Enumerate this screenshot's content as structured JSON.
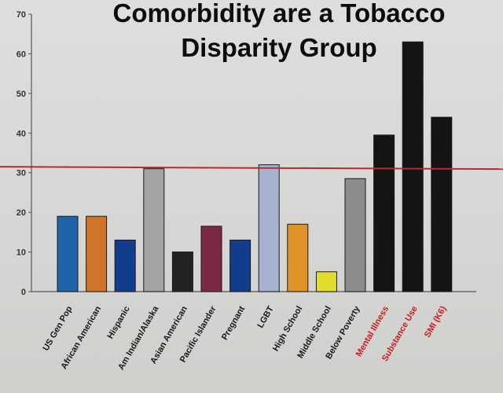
{
  "chart_data": {
    "type": "bar",
    "title": [
      "Comorbidity are a Tobacco",
      "Disparity Group"
    ],
    "xlabel": "",
    "ylabel": "",
    "ylim": [
      0,
      70
    ],
    "yticks": [
      0,
      10,
      20,
      30,
      40,
      50,
      60,
      70
    ],
    "grid": false,
    "legend": "none",
    "categories": [
      "US Gen Pop",
      "African American",
      "Hispanic",
      "Am Indian/Alaska",
      "Asian American",
      "Pacific Islander",
      "Pregnant",
      "LGBT",
      "High School",
      "Middle School",
      "Below Poverty",
      "Mental Illness",
      "Substance Use",
      "SMI (K6)"
    ],
    "values": [
      19,
      19,
      13,
      31,
      10,
      16.5,
      13,
      32,
      17,
      5,
      28.5,
      39.5,
      63,
      44
    ],
    "bar_colors": [
      "#1f64a8",
      "#d0742a",
      "#123c8c",
      "#a3a3a3",
      "#222222",
      "#7a2846",
      "#123c8c",
      "#a7b1d0",
      "#e09428",
      "#e2dc2e",
      "#8c8c8c",
      "#141414",
      "#141414",
      "#141414"
    ],
    "label_colors": [
      "#1a1a1a",
      "#1a1a1a",
      "#1a1a1a",
      "#1a1a1a",
      "#1a1a1a",
      "#1a1a1a",
      "#1a1a1a",
      "#1a1a1a",
      "#1a1a1a",
      "#1a1a1a",
      "#1a1a1a",
      "#c81e1e",
      "#c81e1e",
      "#c81e1e"
    ],
    "reference_line": {
      "value": 31.5,
      "color": "#c0272d"
    }
  }
}
